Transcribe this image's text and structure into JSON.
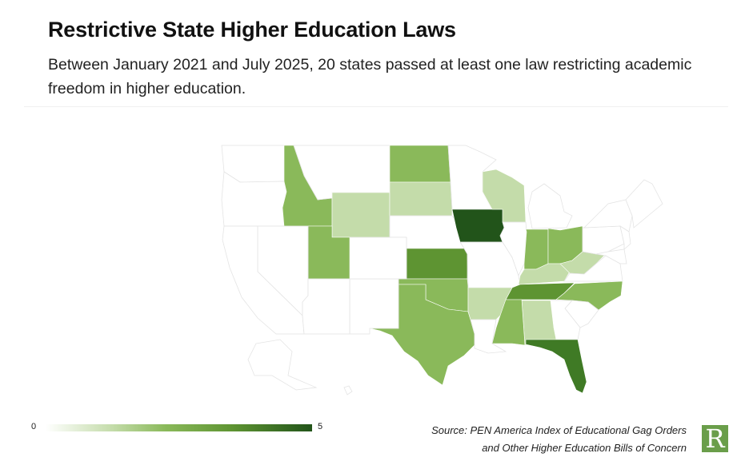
{
  "header": {
    "title": "Restrictive State Higher Education Laws",
    "subtitle": "Between January 2021 and July 2025, 20 states passed at least one law restricting academic freedom in higher education."
  },
  "chart_data": {
    "type": "choropleth",
    "legend": {
      "min_label": "0",
      "max_label": "5",
      "min": 0,
      "max": 5,
      "color_min": "#ffffff",
      "color_max": "#22541a",
      "placement": "bottom-left"
    },
    "color_scale": {
      "0": "#ffffff",
      "1": "#c4dcaa",
      "2": "#8ab95a",
      "3": "#5e9432",
      "4": "#3f7a25",
      "5": "#22541a"
    },
    "states": [
      {
        "state": "Wyoming",
        "value": 1
      },
      {
        "state": "South Dakota",
        "value": 1
      },
      {
        "state": "Wisconsin",
        "value": 1
      },
      {
        "state": "Arkansas",
        "value": 1
      },
      {
        "state": "Alabama",
        "value": 1
      },
      {
        "state": "Kentucky",
        "value": 1
      },
      {
        "state": "West Virginia",
        "value": 1
      },
      {
        "state": "Idaho",
        "value": 2
      },
      {
        "state": "Utah",
        "value": 2
      },
      {
        "state": "North Dakota",
        "value": 2
      },
      {
        "state": "Texas",
        "value": 2
      },
      {
        "state": "Oklahoma",
        "value": 2
      },
      {
        "state": "Mississippi",
        "value": 2
      },
      {
        "state": "Indiana",
        "value": 2
      },
      {
        "state": "Ohio",
        "value": 2
      },
      {
        "state": "North Carolina",
        "value": 2
      },
      {
        "state": "Kansas",
        "value": 3
      },
      {
        "state": "Tennessee",
        "value": 3
      },
      {
        "state": "Florida",
        "value": 4
      },
      {
        "state": "Iowa",
        "value": 5
      }
    ]
  },
  "footer": {
    "source_line1": "Source: PEN America Index of Educational Gag Orders",
    "source_line2": "and Other Higher Education Bills of Concern",
    "logo_text": "R"
  }
}
